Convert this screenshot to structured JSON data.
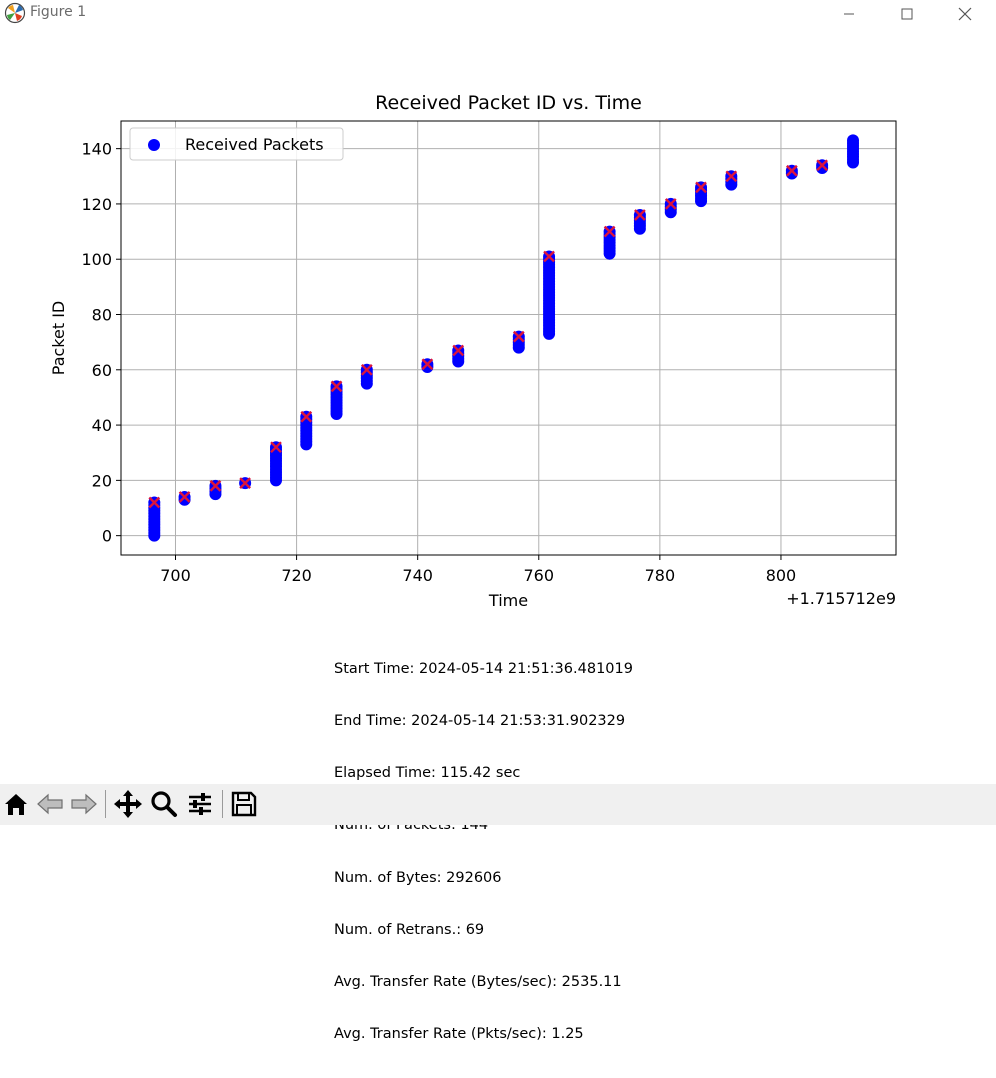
{
  "window": {
    "title": "Figure 1",
    "minimize_icon": "minimize-icon",
    "maximize_icon": "maximize-icon",
    "close_icon": "close-icon"
  },
  "chart_data": {
    "type": "scatter",
    "title": "Received Packet ID vs. Time",
    "xlabel": "Time",
    "ylabel": "Packet ID",
    "x_offset_label": "+1.715712e9",
    "xlim": [
      691,
      819
    ],
    "ylim": [
      -7,
      150
    ],
    "xticks": [
      700,
      720,
      740,
      760,
      780,
      800
    ],
    "yticks": [
      0,
      20,
      40,
      60,
      80,
      100,
      120,
      140
    ],
    "grid": true,
    "legend": {
      "placement": "top-left",
      "entries": [
        "Received Packets"
      ]
    },
    "series": [
      {
        "name": "Received Packets",
        "marker": "circle",
        "color": "#0000ff",
        "groups": [
          {
            "x": 696.5,
            "ymin": 0,
            "ymax": 12
          },
          {
            "x": 701.5,
            "ymin": 13,
            "ymax": 14
          },
          {
            "x": 706.6,
            "ymin": 15,
            "ymax": 18
          },
          {
            "x": 711.5,
            "ymin": 19,
            "ymax": 19
          },
          {
            "x": 716.6,
            "ymin": 20,
            "ymax": 32
          },
          {
            "x": 721.6,
            "ymin": 33,
            "ymax": 43
          },
          {
            "x": 726.6,
            "ymin": 44,
            "ymax": 54
          },
          {
            "x": 731.6,
            "ymin": 55,
            "ymax": 60
          },
          {
            "x": 741.6,
            "ymin": 61,
            "ymax": 62
          },
          {
            "x": 746.7,
            "ymin": 63,
            "ymax": 67
          },
          {
            "x": 756.7,
            "ymin": 68,
            "ymax": 72
          },
          {
            "x": 761.7,
            "ymin": 73,
            "ymax": 101
          },
          {
            "x": 771.7,
            "ymin": 102,
            "ymax": 110
          },
          {
            "x": 776.7,
            "ymin": 111,
            "ymax": 116
          },
          {
            "x": 781.8,
            "ymin": 117,
            "ymax": 120
          },
          {
            "x": 786.8,
            "ymin": 121,
            "ymax": 126
          },
          {
            "x": 791.8,
            "ymin": 127,
            "ymax": 130
          },
          {
            "x": 801.8,
            "ymin": 131,
            "ymax": 132
          },
          {
            "x": 806.8,
            "ymin": 133,
            "ymax": 134
          },
          {
            "x": 811.9,
            "ymin": 135,
            "ymax": 143
          }
        ]
      },
      {
        "marker": "x",
        "color": "#dc143c",
        "points": [
          [
            696.5,
            12
          ],
          [
            701.5,
            14
          ],
          [
            706.6,
            18
          ],
          [
            711.5,
            19
          ],
          [
            716.6,
            32
          ],
          [
            721.6,
            43
          ],
          [
            726.6,
            54
          ],
          [
            731.6,
            60
          ],
          [
            741.6,
            62
          ],
          [
            746.7,
            67
          ],
          [
            756.7,
            72
          ],
          [
            761.7,
            101
          ],
          [
            771.7,
            110
          ],
          [
            776.7,
            116
          ],
          [
            781.8,
            120
          ],
          [
            786.8,
            126
          ],
          [
            791.8,
            130
          ],
          [
            801.8,
            132
          ],
          [
            806.8,
            134
          ]
        ]
      }
    ]
  },
  "stats": [
    "Start Time: 2024-05-14 21:51:36.481019",
    "End Time: 2024-05-14 21:53:31.902329",
    "Elapsed Time: 115.42 sec",
    "Num. of Packets: 144",
    "Num. of Bytes: 292606",
    "Num. of Retrans.: 69",
    "Avg. Transfer Rate (Bytes/sec): 2535.11",
    "Avg. Transfer Rate (Pkts/sec): 1.25"
  ],
  "toolbar": {
    "tools": [
      "home-icon",
      "back-arrow-icon",
      "forward-arrow-icon",
      "pan-move-icon",
      "zoom-magnifier-icon",
      "subplot-sliders-icon",
      "save-floppy-icon"
    ]
  }
}
